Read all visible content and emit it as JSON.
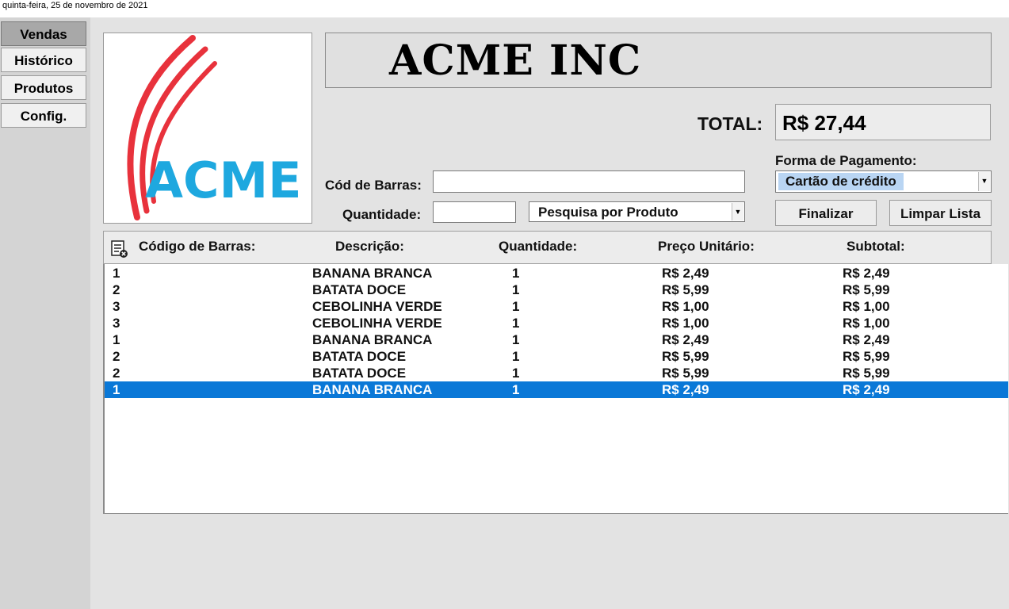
{
  "topbar": {
    "date": "quinta-feira, 25 de novembro de 2021"
  },
  "sidebar": {
    "items": [
      {
        "label": "Vendas",
        "active": true
      },
      {
        "label": "Histórico"
      },
      {
        "label": "Produtos"
      },
      {
        "label": "Config."
      }
    ]
  },
  "logo": {
    "text": "ACME",
    "colors": {
      "swoosh": "#e8323c",
      "text": "#1ea8df"
    }
  },
  "header": {
    "title": "ACME INC"
  },
  "total": {
    "label": "TOTAL:",
    "value": "R$ 27,44"
  },
  "payment": {
    "label": "Forma de Pagamento:",
    "selected": "Cartão de crédito"
  },
  "form": {
    "barcode_label": "Cód de Barras:",
    "barcode_value": "",
    "qty_label": "Quantidade:",
    "qty_value": "",
    "search_selected": "Pesquisa por Produto"
  },
  "buttons": {
    "finalizar": "Finalizar",
    "limpar": "Limpar Lista"
  },
  "table": {
    "columns": [
      "Código de Barras:",
      "Descrição:",
      "Quantidade:",
      "Preço Unitário:",
      "Subtotal:"
    ],
    "rows": [
      {
        "code": "1",
        "desc": "BANANA BRANCA",
        "qty": "1",
        "price": "R$ 2,49",
        "subtotal": "R$ 2,49"
      },
      {
        "code": "2",
        "desc": "BATATA DOCE",
        "qty": "1",
        "price": "R$ 5,99",
        "subtotal": "R$ 5,99"
      },
      {
        "code": "3",
        "desc": "CEBOLINHA VERDE",
        "qty": "1",
        "price": "R$ 1,00",
        "subtotal": "R$ 1,00"
      },
      {
        "code": "3",
        "desc": "CEBOLINHA VERDE",
        "qty": "1",
        "price": "R$ 1,00",
        "subtotal": "R$ 1,00"
      },
      {
        "code": "1",
        "desc": "BANANA BRANCA",
        "qty": "1",
        "price": "R$ 2,49",
        "subtotal": "R$ 2,49"
      },
      {
        "code": "2",
        "desc": "BATATA DOCE",
        "qty": "1",
        "price": "R$ 5,99",
        "subtotal": "R$ 5,99"
      },
      {
        "code": "2",
        "desc": "BATATA DOCE",
        "qty": "1",
        "price": "R$ 5,99",
        "subtotal": "R$ 5,99"
      },
      {
        "code": "1",
        "desc": "BANANA BRANCA",
        "qty": "1",
        "price": "R$ 2,49",
        "subtotal": "R$ 2,49",
        "selected": true
      }
    ],
    "selection_color": "#0a78d7"
  }
}
